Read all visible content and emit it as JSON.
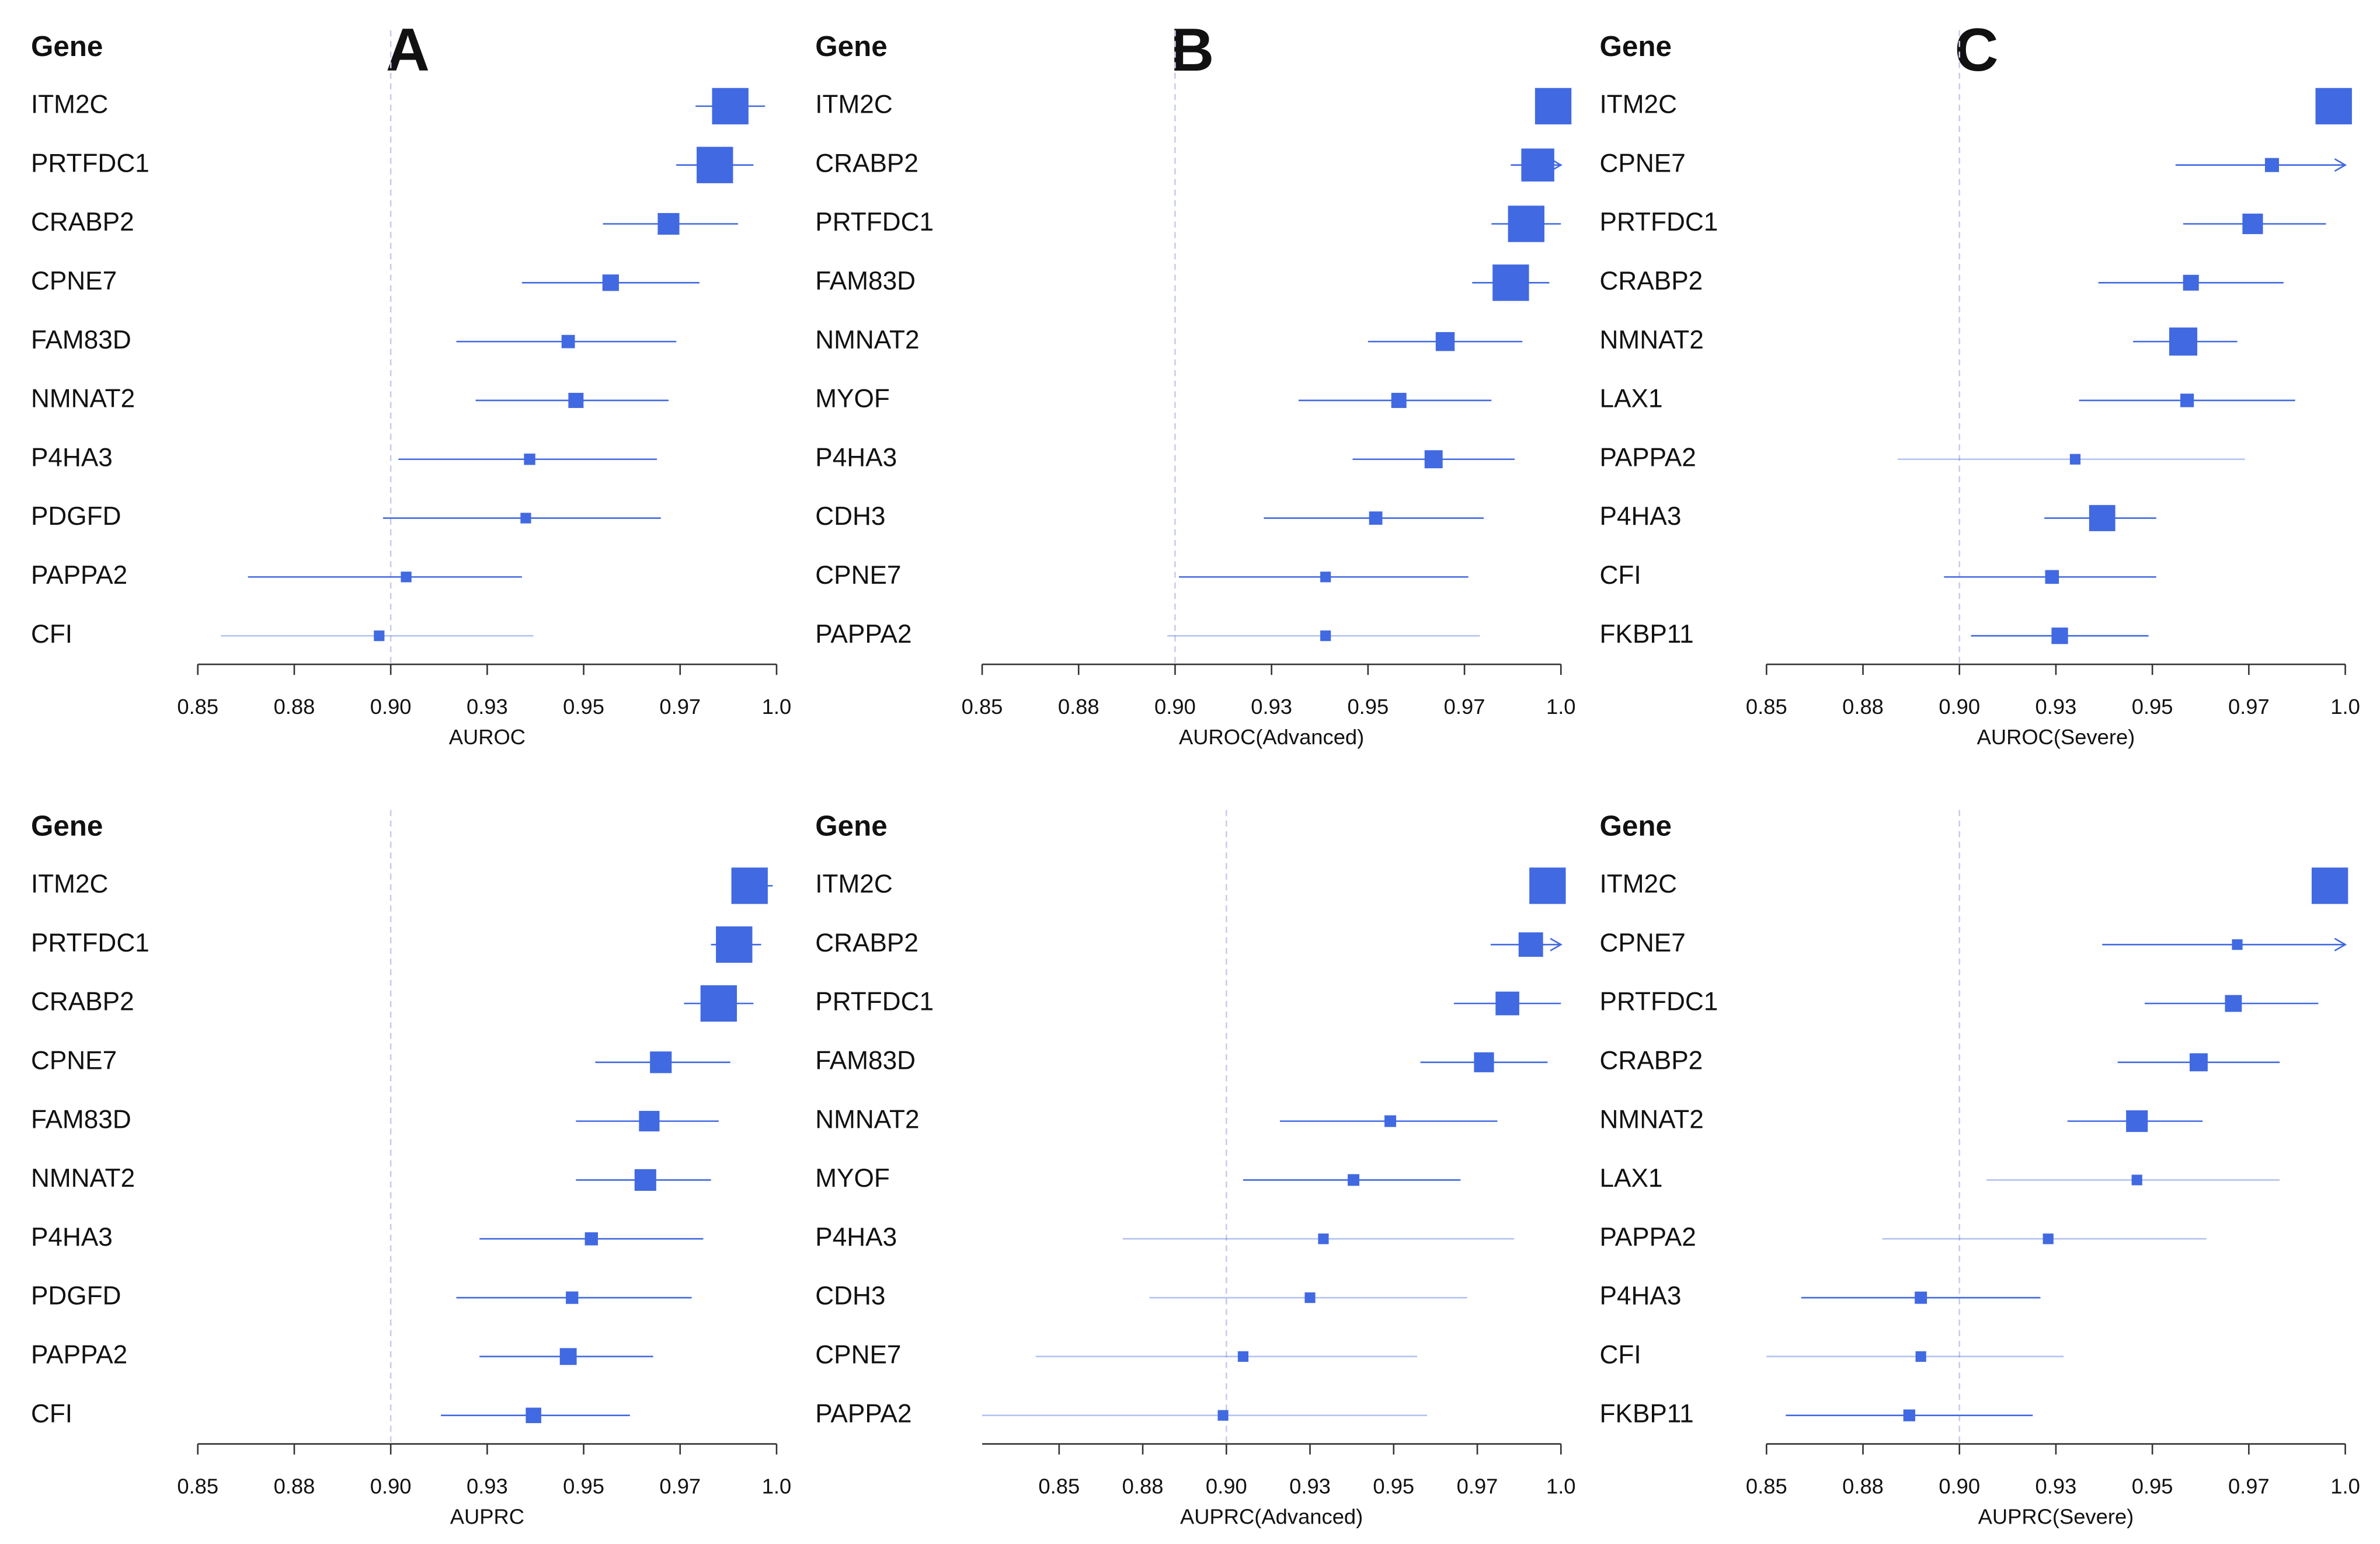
{
  "chart_data": [
    {
      "type": "forest",
      "header": "Gene",
      "panel_label": "A",
      "xlabel": "AUROC",
      "color": "#4169e1",
      "categories": [
        "ITM2C",
        "PRTFDC1",
        "CRABP2",
        "CPNE7",
        "FAM83D",
        "NMNAT2",
        "P4HA3",
        "PDGFD",
        "PAPPA2",
        "CFI"
      ],
      "values": [
        0.988,
        0.984,
        0.972,
        0.957,
        0.946,
        0.948,
        0.936,
        0.935,
        0.904,
        0.897
      ],
      "lower": [
        0.979,
        0.974,
        0.955,
        0.934,
        0.917,
        0.922,
        0.902,
        0.898,
        0.863,
        0.856
      ],
      "upper": [
        0.997,
        0.994,
        0.99,
        0.98,
        0.974,
        0.972,
        0.969,
        0.97,
        0.934,
        0.937
      ],
      "xlim": [
        0.85,
        1.0
      ],
      "ref_line": 0.9,
      "xticks": [
        0.85,
        {
          "value": 0.875,
          "label": "0.88"
        },
        {
          "value": 0.9,
          "label": "0.90"
        },
        {
          "value": 0.925,
          "label": "0.93"
        },
        0.95,
        {
          "value": 0.975,
          "label": "0.97"
        },
        {
          "value": 1,
          "label": "1.0"
        }
      ]
    },
    {
      "type": "forest",
      "header": "Gene",
      "panel_label": "B",
      "xlabel": "AUROC(Advanced)",
      "color": "#4169e1",
      "categories": [
        "ITM2C",
        "CRABP2",
        "PRTFDC1",
        "FAM83D",
        "NMNAT2",
        "MYOF",
        "P4HA3",
        "CDH3",
        "CPNE7",
        "PAPPA2"
      ],
      "values": [
        0.998,
        0.994,
        0.991,
        0.987,
        0.97,
        0.958,
        0.967,
        0.952,
        0.939,
        0.939
      ],
      "lower": [
        0.995,
        0.987,
        0.982,
        0.977,
        0.95,
        0.932,
        0.946,
        0.923,
        0.901,
        0.898
      ],
      "upper": [
        1.0,
        1.01,
        1.0,
        0.997,
        0.99,
        0.982,
        0.988,
        0.98,
        0.976,
        0.979
      ],
      "xlim": [
        0.85,
        1.0
      ],
      "ref_line": 0.9,
      "xticks": [
        0.85,
        {
          "value": 0.875,
          "label": "0.88"
        },
        {
          "value": 0.9,
          "label": "0.90"
        },
        {
          "value": 0.925,
          "label": "0.93"
        },
        0.95,
        {
          "value": 0.975,
          "label": "0.97"
        },
        {
          "value": 1,
          "label": "1.0"
        }
      ]
    },
    {
      "type": "forest",
      "header": "Gene",
      "panel_label": "C",
      "xlabel": "AUROC(Severe)",
      "color": "#4169e1",
      "categories": [
        "ITM2C",
        "CPNE7",
        "PRTFDC1",
        "CRABP2",
        "NMNAT2",
        "LAX1",
        "PAPPA2",
        "P4HA3",
        "CFI",
        "FKBP11"
      ],
      "values": [
        0.997,
        0.981,
        0.976,
        0.96,
        0.958,
        0.959,
        0.93,
        0.937,
        0.924,
        0.926
      ],
      "lower": [
        0.994,
        0.956,
        0.958,
        0.936,
        0.945,
        0.931,
        0.884,
        0.922,
        0.896,
        0.903
      ],
      "upper": [
        1.0,
        1.01,
        0.995,
        0.984,
        0.972,
        0.987,
        0.974,
        0.951,
        0.951,
        0.949
      ],
      "xlim": [
        0.85,
        1.0
      ],
      "ref_line": 0.9,
      "xticks": [
        0.85,
        {
          "value": 0.875,
          "label": "0.88"
        },
        {
          "value": 0.9,
          "label": "0.90"
        },
        {
          "value": 0.925,
          "label": "0.93"
        },
        0.95,
        {
          "value": 0.975,
          "label": "0.97"
        },
        {
          "value": 1,
          "label": "1.0"
        }
      ]
    },
    {
      "type": "forest",
      "header": "Gene",
      "xlabel": "AUPRC",
      "color": "#4169e1",
      "categories": [
        "ITM2C",
        "PRTFDC1",
        "CRABP2",
        "CPNE7",
        "FAM83D",
        "NMNAT2",
        "P4HA3",
        "PDGFD",
        "PAPPA2",
        "CFI"
      ],
      "values": [
        0.993,
        0.989,
        0.985,
        0.97,
        0.967,
        0.966,
        0.952,
        0.947,
        0.946,
        0.937
      ],
      "lower": [
        0.989,
        0.983,
        0.976,
        0.953,
        0.948,
        0.948,
        0.923,
        0.917,
        0.923,
        0.913
      ],
      "upper": [
        0.999,
        0.996,
        0.994,
        0.988,
        0.985,
        0.983,
        0.981,
        0.978,
        0.968,
        0.962
      ],
      "xlim": [
        0.85,
        1.0
      ],
      "ref_line": 0.9,
      "xticks": [
        0.85,
        {
          "value": 0.875,
          "label": "0.88"
        },
        {
          "value": 0.9,
          "label": "0.90"
        },
        {
          "value": 0.925,
          "label": "0.93"
        },
        0.95,
        {
          "value": 0.975,
          "label": "0.97"
        },
        {
          "value": 1,
          "label": "1.0"
        }
      ]
    },
    {
      "type": "forest",
      "header": "Gene",
      "xlabel": "AUPRC(Advanced)",
      "color": "#4169e1",
      "categories": [
        "ITM2C",
        "CRABP2",
        "PRTFDC1",
        "FAM83D",
        "NMNAT2",
        "MYOF",
        "P4HA3",
        "CDH3",
        "CPNE7",
        "PAPPA2"
      ],
      "values": [
        0.996,
        0.991,
        0.984,
        0.977,
        0.949,
        0.938,
        0.929,
        0.925,
        0.905,
        0.899
      ],
      "lower": [
        0.991,
        0.979,
        0.968,
        0.958,
        0.916,
        0.905,
        0.869,
        0.877,
        0.843,
        0.827
      ],
      "upper": [
        1.0,
        1.01,
        1.0,
        0.996,
        0.981,
        0.97,
        0.986,
        0.972,
        0.957,
        0.96
      ],
      "xlim": [
        0.827,
        1.0
      ],
      "ref_line": 0.9,
      "xticks": [
        0.85,
        {
          "value": 0.875,
          "label": "0.88"
        },
        {
          "value": 0.9,
          "label": "0.90"
        },
        {
          "value": 0.925,
          "label": "0.93"
        },
        0.95,
        {
          "value": 0.975,
          "label": "0.97"
        },
        {
          "value": 1,
          "label": "1.0"
        }
      ]
    },
    {
      "type": "forest",
      "header": "Gene",
      "xlabel": "AUPRC(Severe)",
      "color": "#4169e1",
      "categories": [
        "ITM2C",
        "CPNE7",
        "PRTFDC1",
        "CRABP2",
        "NMNAT2",
        "LAX1",
        "PAPPA2",
        "P4HA3",
        "CFI",
        "FKBP11"
      ],
      "values": [
        0.996,
        0.972,
        0.971,
        0.962,
        0.946,
        0.946,
        0.923,
        0.89,
        0.89,
        0.887
      ],
      "lower": [
        0.993,
        0.937,
        0.948,
        0.941,
        0.928,
        0.907,
        0.88,
        0.859,
        0.85,
        0.855
      ],
      "upper": [
        1.0,
        1.01,
        0.993,
        0.983,
        0.963,
        0.983,
        0.964,
        0.921,
        0.927,
        0.919
      ],
      "xlim": [
        0.85,
        1.0
      ],
      "ref_line": 0.9,
      "xticks": [
        0.85,
        {
          "value": 0.875,
          "label": "0.88"
        },
        {
          "value": 0.9,
          "label": "0.90"
        },
        {
          "value": 0.925,
          "label": "0.93"
        },
        0.95,
        {
          "value": 0.975,
          "label": "0.97"
        },
        {
          "value": 1,
          "label": "1.0"
        }
      ]
    }
  ]
}
